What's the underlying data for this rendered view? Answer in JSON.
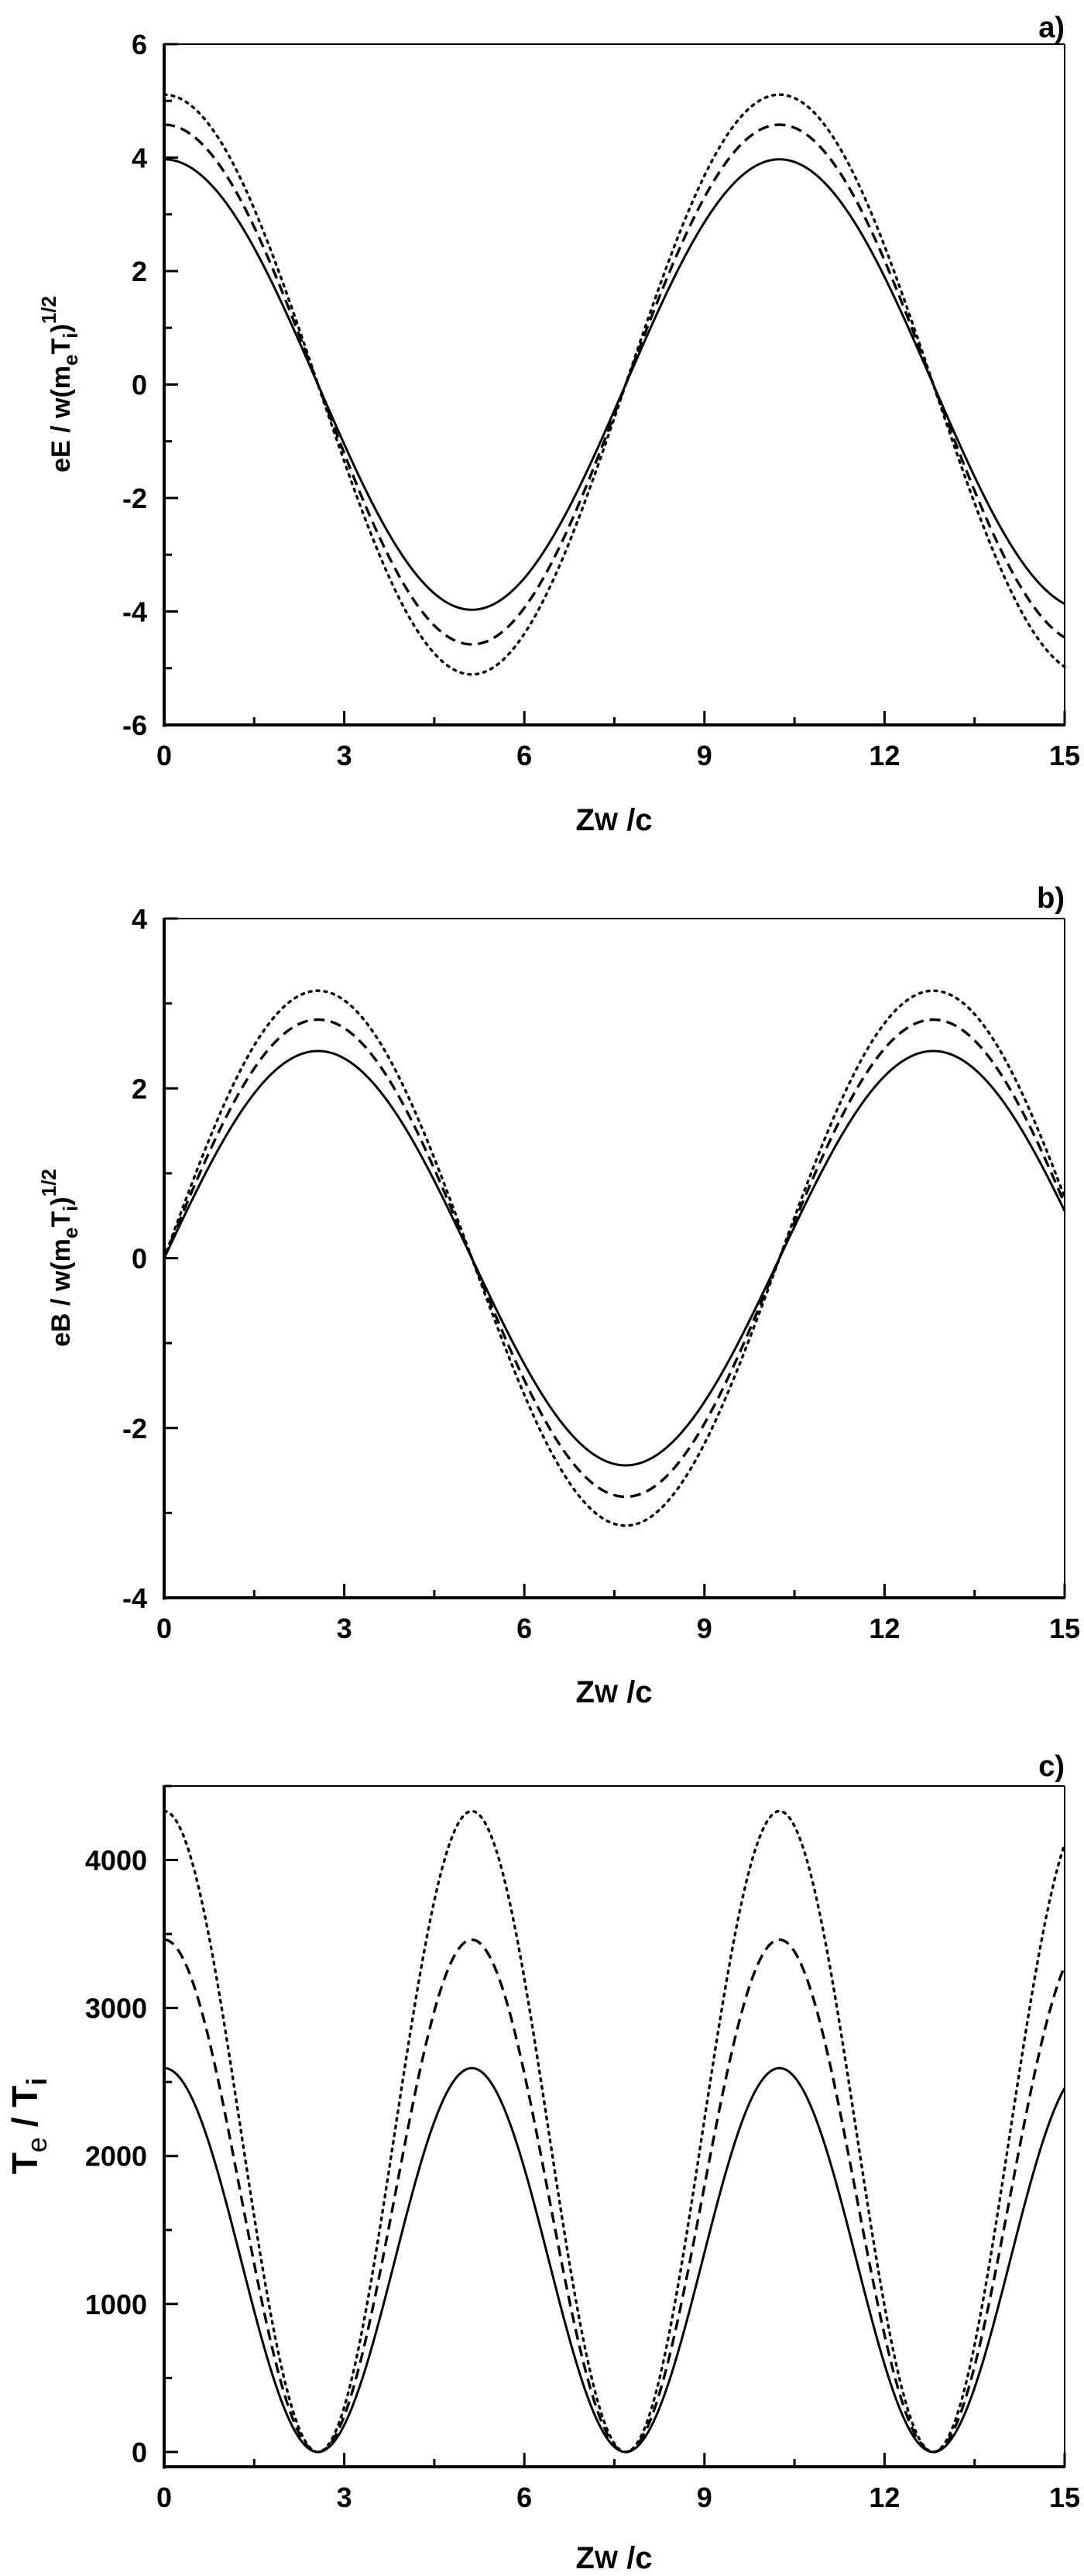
{
  "figure": {
    "panels": [
      {
        "id": "a",
        "label": "a)",
        "ylabel_main": "eE / w(m",
        "ylabel_sub1": "e",
        "ylabel_mid": "T",
        "ylabel_sub2": "i",
        "ylabel_tail": ")",
        "ylabel_sup": "1/2",
        "xlabel_main": "Z",
        "xlabel_w": "W",
        "xlabel_tail": " /c"
      },
      {
        "id": "b",
        "label": "b)",
        "ylabel_main": "eB / w(m",
        "ylabel_sub1": "e",
        "ylabel_mid": "T",
        "ylabel_sub2": "i",
        "ylabel_tail": ")",
        "ylabel_sup": "1/2",
        "xlabel_main": "Z",
        "xlabel_w": "W",
        "xlabel_tail": " /c"
      },
      {
        "id": "c",
        "label": "c)",
        "ylabel_main": "T",
        "ylabel_sub1": "e",
        "ylabel_mid": " / T",
        "ylabel_sub2": "i",
        "xlabel_main": "Z",
        "xlabel_w": "W",
        "xlabel_tail": " /c"
      }
    ]
  },
  "chart_data": [
    {
      "type": "line",
      "panel": "a)",
      "title": "",
      "xlabel": "Zw /c",
      "ylabel": "eE / w(m_e T_i)^{1/2}",
      "xlim": [
        0,
        15
      ],
      "ylim": [
        -6,
        6
      ],
      "xticks": [
        0,
        3,
        6,
        9,
        12,
        15
      ],
      "yticks": [
        -6,
        -4,
        -2,
        0,
        2,
        4,
        6
      ],
      "grid": false,
      "legend": "none",
      "function": "A*cos(2*pi*x/10.25)",
      "period": 10.25,
      "series": [
        {
          "name": "solid",
          "style": "solid",
          "amplitude": 3.97,
          "x": [
            0,
            1.5,
            2.56,
            3,
            4.5,
            5.13,
            6,
            7.5,
            9,
            10.25,
            12,
            13.5,
            15
          ],
          "y": [
            3.97,
            2.45,
            0.0,
            -0.66,
            -3.61,
            -3.97,
            -3.55,
            -0.46,
            2.91,
            3.97,
            1.87,
            -2.24,
            -3.86
          ]
        },
        {
          "name": "dashed",
          "style": "dashed",
          "amplitude": 4.58,
          "x": [
            0,
            1.5,
            2.56,
            3,
            4.5,
            5.13,
            6,
            7.5,
            9,
            10.25,
            12,
            13.5,
            15
          ],
          "y": [
            4.58,
            2.83,
            0.0,
            -0.76,
            -4.17,
            -4.58,
            -4.1,
            -0.53,
            3.36,
            4.58,
            2.16,
            -2.59,
            -4.46
          ]
        },
        {
          "name": "dotted",
          "style": "dotted",
          "amplitude": 5.11,
          "x": [
            0,
            1.5,
            2.56,
            3,
            4.5,
            5.13,
            6,
            7.5,
            9,
            10.25,
            12,
            13.5,
            15
          ],
          "y": [
            5.11,
            3.16,
            0.0,
            -0.85,
            -4.65,
            -5.11,
            -4.57,
            -0.59,
            3.75,
            5.11,
            2.41,
            -2.89,
            -4.97
          ]
        }
      ]
    },
    {
      "type": "line",
      "panel": "b)",
      "title": "",
      "xlabel": "Zw /c",
      "ylabel": "eB / w(m_e T_i)^{1/2}",
      "xlim": [
        0,
        15
      ],
      "ylim": [
        -4,
        4
      ],
      "xticks": [
        0,
        3,
        6,
        9,
        12,
        15
      ],
      "yticks": [
        -4,
        -2,
        0,
        2,
        4
      ],
      "grid": false,
      "legend": "none",
      "function": "A*sin(2*pi*x/10.25)",
      "period": 10.25,
      "series": [
        {
          "name": "solid",
          "style": "solid",
          "amplitude": 2.44,
          "x": [
            0,
            1.5,
            2.56,
            4,
            5.13,
            6,
            7.69,
            9,
            10.25,
            12.81,
            15
          ],
          "y": [
            0.0,
            1.94,
            2.44,
            1.53,
            0.0,
            -1.25,
            -2.44,
            -1.76,
            0.0,
            2.44,
            0.56
          ]
        },
        {
          "name": "dashed",
          "style": "dashed",
          "amplitude": 2.81,
          "x": [
            0,
            1.5,
            2.56,
            4,
            5.13,
            6,
            7.69,
            9,
            10.25,
            12.81,
            15
          ],
          "y": [
            0.0,
            2.23,
            2.81,
            1.76,
            0.0,
            -1.44,
            -2.81,
            -2.03,
            0.0,
            2.81,
            0.64
          ]
        },
        {
          "name": "dotted",
          "style": "dotted",
          "amplitude": 3.15,
          "x": [
            0,
            1.5,
            2.56,
            4,
            5.13,
            6,
            7.69,
            9,
            10.25,
            12.81,
            15
          ],
          "y": [
            0.0,
            2.5,
            3.15,
            1.97,
            0.0,
            -1.61,
            -3.15,
            -2.27,
            0.0,
            3.15,
            0.72
          ]
        }
      ]
    },
    {
      "type": "line",
      "panel": "c)",
      "title": "",
      "xlabel": "Zw /c",
      "ylabel": "T_e / T_i",
      "xlim": [
        0,
        15
      ],
      "ylim": [
        -100,
        4500
      ],
      "xticks": [
        0,
        3,
        6,
        9,
        12,
        15
      ],
      "yticks": [
        0,
        1000,
        2000,
        3000,
        4000
      ],
      "grid": false,
      "legend": "none",
      "function": "A*cos^2(2*pi*x/10.25)",
      "period": 10.25,
      "series": [
        {
          "name": "solid",
          "style": "solid",
          "amplitude": 2594,
          "x": [
            0,
            1.28,
            2.56,
            3.84,
            5.13,
            6.41,
            7.69,
            8.97,
            10.25,
            11.53,
            12.81,
            14.09,
            15
          ],
          "y": [
            2594,
            1297,
            0,
            1297,
            2594,
            1297,
            0,
            1297,
            2594,
            1297,
            0,
            1297,
            2456
          ]
        },
        {
          "name": "dashed",
          "style": "dashed",
          "amplitude": 3462,
          "x": [
            0,
            1.28,
            2.56,
            3.84,
            5.13,
            6.41,
            7.69,
            8.97,
            10.25,
            11.53,
            12.81,
            14.09,
            15
          ],
          "y": [
            3462,
            1731,
            0,
            1731,
            3462,
            1731,
            0,
            1731,
            3462,
            1731,
            0,
            1731,
            3278
          ]
        },
        {
          "name": "dotted",
          "style": "dotted",
          "amplitude": 4330,
          "x": [
            0,
            1.28,
            2.56,
            3.84,
            5.13,
            6.41,
            7.69,
            8.97,
            10.25,
            11.53,
            12.81,
            14.09,
            15
          ],
          "y": [
            4330,
            2165,
            0,
            2165,
            4330,
            2165,
            0,
            2165,
            4330,
            2165,
            0,
            2165,
            4100
          ]
        }
      ]
    }
  ]
}
